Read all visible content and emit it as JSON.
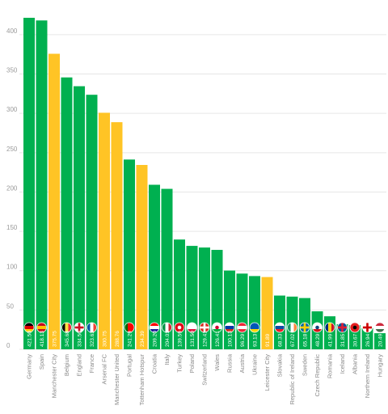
{
  "colors": {
    "country": "#00b050",
    "club": "#ffc425",
    "grid": "#e6e6e6",
    "axis_text": "#9a9a9a"
  },
  "chart_data": {
    "type": "bar",
    "title": "",
    "xlabel": "",
    "ylabel": "",
    "ylim": [
      0,
      440
    ],
    "yticks": [
      0,
      50,
      100,
      150,
      200,
      250,
      300,
      350,
      400
    ],
    "grid": true,
    "legend": "none",
    "categories": [
      "Germany",
      "Spain",
      "Manchester City",
      "Belgium",
      "England",
      "France",
      "Arsenal FC",
      "Manchester United",
      "Portugal",
      "Tottenham Hotspur",
      "Croatia",
      "Italy",
      "Turkey",
      "Poland",
      "Switzerland",
      "Wales",
      "Russia",
      "Austria",
      "Ukraine",
      "Leicester City",
      "Slovakia",
      "Republic of Ireland",
      "Sweden",
      "Czech Republic",
      "Romania",
      "Iceland",
      "Albania",
      "Northern Ireland",
      "Hungary"
    ],
    "values": [
      421.5,
      418.13,
      375.75,
      345.68,
      334.5,
      323.63,
      300.75,
      288.76,
      241.29,
      234.39,
      209.2,
      204.01,
      139.59,
      131.5,
      129.41,
      126.41,
      100.13,
      96.29,
      93.13,
      91.89,
      68.33,
      67.02,
      65.18,
      48.29,
      41.99,
      31.85,
      30.67,
      26.94,
      20.49
    ],
    "value_labels": [
      "421.50",
      "418.13",
      "375.75",
      "345.68",
      "334.50",
      "323.63",
      "300.75",
      "288.76",
      "241.29",
      "234.39",
      "209.20",
      "204.01",
      "139.59",
      "131.50",
      "129.41",
      "126.41",
      "100.13",
      "96.29",
      "93.13",
      "91.89",
      "68.33",
      "67.02",
      "65.18",
      "48.29",
      "41.99",
      "31.85",
      "30.67",
      "26.94",
      "20.49"
    ],
    "kinds": [
      "country",
      "country",
      "club",
      "country",
      "country",
      "country",
      "club",
      "club",
      "country",
      "club",
      "country",
      "country",
      "country",
      "country",
      "country",
      "country",
      "country",
      "country",
      "country",
      "club",
      "country",
      "country",
      "country",
      "country",
      "country",
      "country",
      "country",
      "country",
      "country"
    ],
    "flag_icons": [
      "flag-germany-icon",
      "flag-spain-icon",
      "",
      "flag-belgium-icon",
      "flag-england-icon",
      "flag-france-icon",
      "",
      "",
      "flag-portugal-icon",
      "",
      "flag-croatia-icon",
      "flag-italy-icon",
      "flag-turkey-icon",
      "flag-poland-icon",
      "flag-switzerland-icon",
      "flag-wales-icon",
      "flag-russia-icon",
      "flag-austria-icon",
      "flag-ukraine-icon",
      "",
      "flag-slovakia-icon",
      "flag-ireland-icon",
      "flag-sweden-icon",
      "flag-czech-republic-icon",
      "flag-romania-icon",
      "flag-iceland-icon",
      "flag-albania-icon",
      "flag-northern-ireland-icon",
      "flag-hungary-icon"
    ]
  }
}
